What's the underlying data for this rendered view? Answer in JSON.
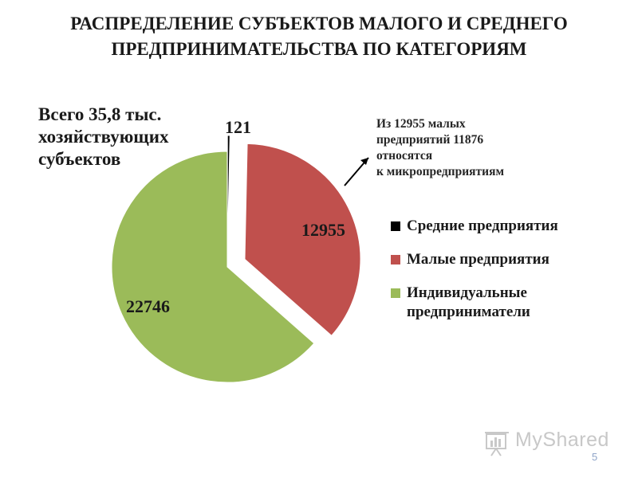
{
  "title_line1": "РАСПРЕДЕЛЕНИЕ СУБЪЕКТОВ МАЛОГО И СРЕДНЕГО",
  "title_line2": "ПРЕДПРИНИМАТЕЛЬСТВА ПО КАТЕГОРИЯМ",
  "total_text_line1": "Всего 35,8 тыс.",
  "total_text_line2": "хозяйствующих",
  "total_text_line3": "субъектов",
  "note_line1": "Из 12955 малых",
  "note_line2": "предприятий 11876",
  "note_line3": "относятся",
  "note_line4": "к микропредприятиям",
  "watermark": {
    "text": "MyShared",
    "icon": "presentation-board-icon"
  },
  "page_number": "5",
  "colors": {
    "medium": "#000000",
    "small": "#c0504d",
    "individual": "#9bbb59",
    "text": "#1a1a1a"
  },
  "chart_data": {
    "type": "pie",
    "exploded": true,
    "start": "top",
    "direction": "clockwise",
    "legend_position": "right",
    "slices": [
      {
        "name": "Средние предприятия",
        "value": 121,
        "label": "121",
        "color": "#000000"
      },
      {
        "name": "Малые предприятия",
        "value": 12955,
        "label": "12955",
        "color": "#c0504d"
      },
      {
        "name": "Индивидуальные предприниматели",
        "value": 22746,
        "label": "22746",
        "color": "#9bbb59"
      }
    ],
    "legend": [
      {
        "label": "Средние предприятия",
        "color": "#000000"
      },
      {
        "label": "Малые предприятия",
        "color": "#c0504d"
      },
      {
        "label_line1": "Индивидуальные",
        "label_line2": "предприниматели",
        "color": "#9bbb59"
      }
    ]
  }
}
